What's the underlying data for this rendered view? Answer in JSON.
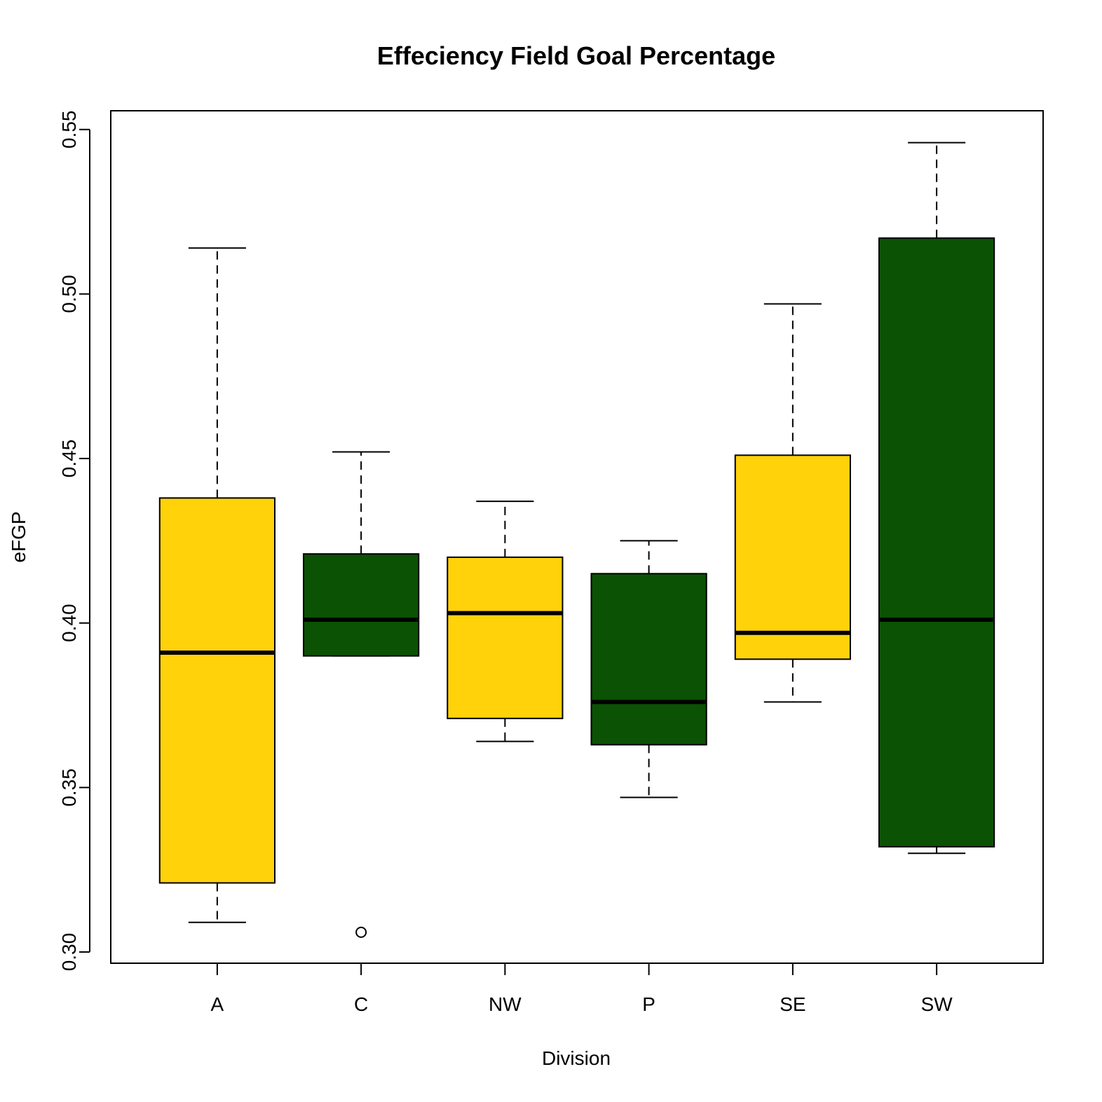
{
  "chart_data": {
    "type": "box",
    "title": "Effeciency Field Goal Percentage",
    "xlabel": "Division",
    "ylabel": "eFGP",
    "ylim": [
      0.2966,
      0.5557
    ],
    "yticks": [
      "0.30",
      "0.35",
      "0.40",
      "0.45",
      "0.50",
      "0.55"
    ],
    "ytick_values": [
      0.3,
      0.35,
      0.4,
      0.45,
      0.5,
      0.55
    ],
    "grid": false,
    "categories": [
      "A",
      "C",
      "NW",
      "P",
      "SE",
      "SW"
    ],
    "colors": [
      "#FFD20A",
      "#0B5205",
      "#FFD20A",
      "#0B5205",
      "#FFD20A",
      "#0B5205"
    ],
    "boxes": [
      {
        "category": "A",
        "whisker_low": 0.309,
        "q1": 0.321,
        "median": 0.391,
        "q3": 0.438,
        "whisker_high": 0.514,
        "outliers": []
      },
      {
        "category": "C",
        "whisker_low": 0.39,
        "q1": 0.39,
        "median": 0.401,
        "q3": 0.421,
        "whisker_high": 0.452,
        "outliers": [
          0.306
        ]
      },
      {
        "category": "NW",
        "whisker_low": 0.364,
        "q1": 0.371,
        "median": 0.403,
        "q3": 0.42,
        "whisker_high": 0.437,
        "outliers": []
      },
      {
        "category": "P",
        "whisker_low": 0.347,
        "q1": 0.363,
        "median": 0.376,
        "q3": 0.415,
        "whisker_high": 0.425,
        "outliers": []
      },
      {
        "category": "SE",
        "whisker_low": 0.376,
        "q1": 0.389,
        "median": 0.397,
        "q3": 0.451,
        "whisker_high": 0.497,
        "outliers": []
      },
      {
        "category": "SW",
        "whisker_low": 0.33,
        "q1": 0.332,
        "median": 0.401,
        "q3": 0.517,
        "whisker_high": 0.546,
        "outliers": []
      }
    ]
  }
}
